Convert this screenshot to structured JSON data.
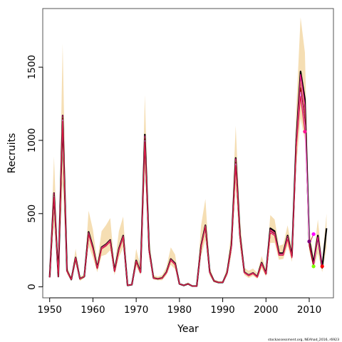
{
  "chart_data": {
    "type": "line",
    "title": "",
    "xlabel": "Year",
    "ylabel": "Recruits",
    "xlim": [
      1948.4,
      2015.6
    ],
    "ylim": [
      -75,
      1900
    ],
    "x_ticks": [
      1950,
      1960,
      1970,
      1980,
      1990,
      2000,
      2010
    ],
    "y_ticks": [
      0,
      500,
      1000,
      1500
    ],
    "grid": false,
    "legend": "none",
    "credit": "stockassessment.org, NEAhad_2016, r6923",
    "colors": {
      "band": "#f5deb3",
      "main_line": "#000000",
      "retro_lines": [
        "#ff1493",
        "#cd5c5c",
        "#8b0000",
        "#ee82ee",
        "#dc143c"
      ],
      "end_points": [
        "#ff0000",
        "#ff00ff",
        "#7fff00",
        "#800080",
        "#ff1493"
      ]
    },
    "years": [
      1950,
      1951,
      1952,
      1953,
      1954,
      1955,
      1956,
      1957,
      1958,
      1959,
      1960,
      1961,
      1962,
      1963,
      1964,
      1965,
      1966,
      1967,
      1968,
      1969,
      1970,
      1971,
      1972,
      1973,
      1974,
      1975,
      1976,
      1977,
      1978,
      1979,
      1980,
      1981,
      1982,
      1983,
      1984,
      1985,
      1986,
      1987,
      1988,
      1989,
      1990,
      1991,
      1992,
      1993,
      1994,
      1995,
      1996,
      1997,
      1998,
      1999,
      2000,
      2001,
      2002,
      2003,
      2004,
      2005,
      2006,
      2007,
      2008,
      2009,
      2010,
      2011,
      2012,
      2013,
      2014
    ],
    "series": [
      {
        "values": [
          65,
          640,
          70,
          1170,
          110,
          50,
          200,
          55,
          70,
          375,
          270,
          130,
          270,
          290,
          320,
          110,
          260,
          350,
          10,
          15,
          180,
          100,
          1040,
          250,
          60,
          55,
          60,
          100,
          190,
          160,
          20,
          10,
          20,
          5,
          5,
          280,
          420,
          100,
          40,
          30,
          30,
          95,
          280,
          880,
          350,
          100,
          80,
          95,
          70,
          165,
          90,
          400,
          380,
          230,
          230,
          350,
          210,
          1000,
          1470,
          1280,
          320,
          160,
          350,
          130,
          400
        ]
      }
    ],
    "confidence_band": {
      "lower": [
        60,
        430,
        60,
        720,
        90,
        40,
        160,
        40,
        60,
        280,
        200,
        100,
        210,
        220,
        250,
        80,
        200,
        270,
        5,
        10,
        140,
        80,
        800,
        200,
        50,
        45,
        45,
        80,
        150,
        120,
        15,
        8,
        15,
        3,
        3,
        210,
        320,
        75,
        30,
        25,
        25,
        75,
        220,
        680,
        270,
        80,
        60,
        75,
        55,
        125,
        70,
        300,
        300,
        185,
        190,
        280,
        170,
        820,
        1150,
        1000,
        250,
        120,
        230,
        100,
        270
      ],
      "upper": [
        75,
        890,
        85,
        1660,
        140,
        65,
        260,
        70,
        85,
        520,
        390,
        170,
        380,
        420,
        470,
        140,
        380,
        480,
        15,
        20,
        260,
        140,
        1310,
        330,
        80,
        70,
        80,
        135,
        270,
        220,
        25,
        15,
        30,
        8,
        8,
        420,
        600,
        135,
        50,
        40,
        40,
        130,
        380,
        1100,
        460,
        130,
        110,
        125,
        95,
        210,
        120,
        490,
        460,
        280,
        290,
        420,
        260,
        1210,
        1840,
        1600,
        400,
        210,
        460,
        170,
        500
      ]
    },
    "retrospective_runs": [
      {
        "end_year": 2013,
        "values": [
          65,
          640,
          70,
          1170,
          110,
          50,
          200,
          55,
          70,
          370,
          265,
          130,
          268,
          288,
          318,
          108,
          258,
          348,
          10,
          15,
          178,
          100,
          1030,
          248,
          60,
          55,
          60,
          100,
          188,
          158,
          20,
          10,
          20,
          5,
          5,
          278,
          418,
          100,
          40,
          30,
          30,
          95,
          278,
          875,
          348,
          100,
          80,
          95,
          70,
          163,
          90,
          390,
          370,
          225,
          226,
          345,
          206,
          990,
          1450,
          1240,
          300,
          150,
          340,
          140
        ]
      },
      {
        "end_year": 2012,
        "values": [
          65,
          630,
          70,
          1160,
          108,
          50,
          198,
          55,
          70,
          365,
          262,
          128,
          265,
          285,
          315,
          106,
          255,
          345,
          10,
          15,
          176,
          98,
          1020,
          245,
          60,
          55,
          60,
          98,
          186,
          156,
          20,
          10,
          20,
          5,
          5,
          276,
          415,
          98,
          40,
          30,
          30,
          93,
          275,
          860,
          345,
          98,
          78,
          93,
          68,
          160,
          88,
          385,
          365,
          222,
          222,
          340,
          204,
          980,
          1400,
          1180,
          290,
          360
        ]
      },
      {
        "end_year": 2011,
        "values": [
          64,
          625,
          70,
          1150,
          106,
          50,
          196,
          54,
          70,
          362,
          260,
          126,
          262,
          283,
          312,
          105,
          252,
          342,
          10,
          15,
          175,
          97,
          1010,
          243,
          59,
          55,
          59,
          97,
          184,
          154,
          20,
          10,
          20,
          5,
          5,
          274,
          412,
          97,
          40,
          30,
          30,
          92,
          272,
          850,
          342,
          97,
          77,
          92,
          67,
          158,
          87,
          380,
          360,
          220,
          220,
          335,
          202,
          970,
          1360,
          1140,
          280,
          140
        ]
      },
      {
        "end_year": 2010,
        "values": [
          64,
          620,
          70,
          1140,
          105,
          50,
          195,
          54,
          70,
          360,
          258,
          125,
          260,
          280,
          310,
          104,
          250,
          340,
          10,
          15,
          174,
          96,
          1000,
          240,
          58,
          55,
          58,
          96,
          182,
          152,
          20,
          10,
          20,
          5,
          5,
          272,
          410,
          96,
          40,
          30,
          30,
          91,
          270,
          840,
          340,
          96,
          76,
          91,
          66,
          156,
          86,
          375,
          355,
          218,
          218,
          330,
          200,
          960,
          1330,
          1100,
          310
        ]
      },
      {
        "end_year": 2009,
        "values": [
          64,
          615,
          70,
          1130,
          104,
          50,
          194,
          53,
          70,
          358,
          256,
          124,
          258,
          278,
          308,
          103,
          248,
          338,
          10,
          15,
          173,
          95,
          990,
          238,
          58,
          55,
          58,
          95,
          180,
          150,
          20,
          10,
          20,
          5,
          5,
          270,
          408,
          95,
          40,
          30,
          30,
          90,
          268,
          830,
          338,
          95,
          75,
          90,
          65,
          155,
          85,
          370,
          350,
          215,
          215,
          325,
          198,
          950,
          1300,
          1060
        ]
      }
    ]
  }
}
